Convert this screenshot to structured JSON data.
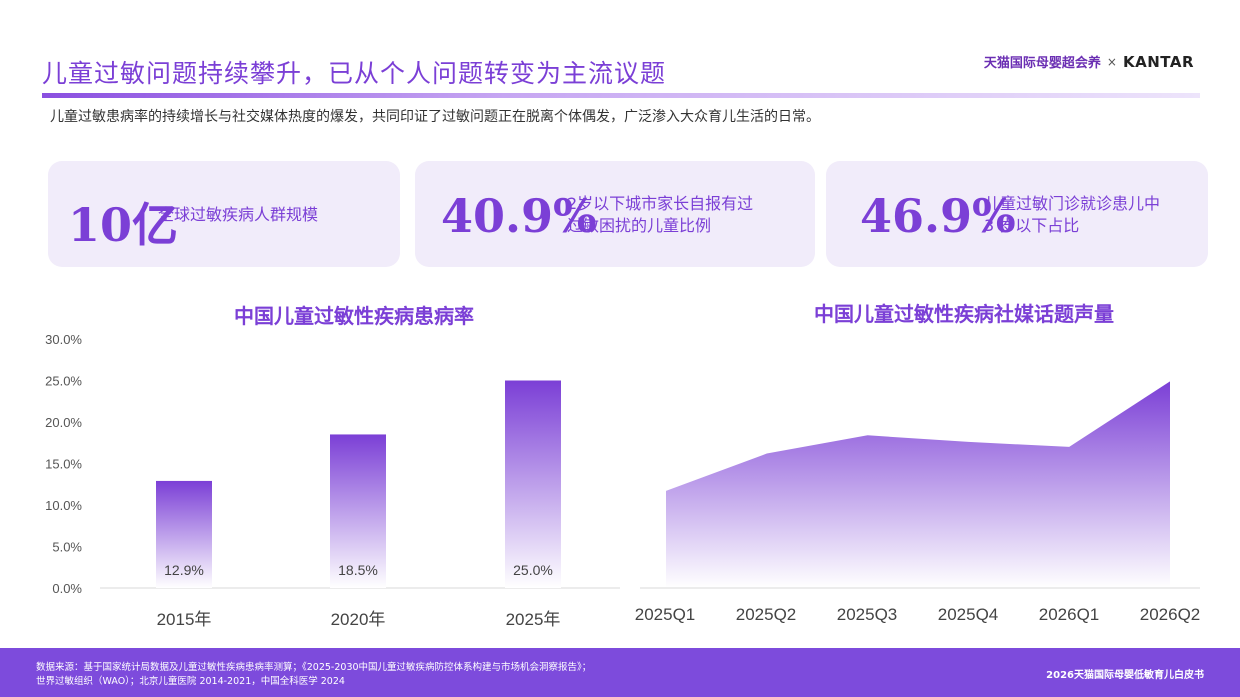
{
  "header": {
    "title": "儿童过敏问题持续攀升，已从个人问题转变为主流议题",
    "subtitle": "儿童过敏患病率的持续增长与社交媒体热度的爆发，共同印证了过敏问题正在脱离个体偶发，广泛渗入大众育儿生活的日常。",
    "brand_tmall": "天猫国际母婴超会养",
    "brand_x": "×",
    "brand_kantar": "KANTAR"
  },
  "stats": [
    {
      "value": "10亿",
      "desc1": "全球过敏疾病人群规模",
      "desc2": ""
    },
    {
      "value": "40.9%",
      "desc1": "2岁以下城市家长自报有过",
      "desc2": "过敏困扰的儿童比例"
    },
    {
      "value": "46.9%",
      "desc1": "儿童过敏门诊就诊患儿中",
      "desc2": "3 岁以下占比"
    }
  ],
  "colors": {
    "accent": "#7b3fd6",
    "card_bg": "#f1ecfa",
    "footer_bg": "#7d4bdc"
  },
  "chart_data": [
    {
      "type": "bar",
      "title": "中国儿童过敏性疾病患病率",
      "categories": [
        "2015年",
        "2020年",
        "2025年"
      ],
      "values": [
        12.9,
        18.5,
        25.0
      ],
      "value_labels": [
        "12.9%",
        "18.5%",
        "25.0%"
      ],
      "yticks": [
        "0.0%",
        "5.0%",
        "10.0%",
        "15.0%",
        "20.0%",
        "25.0%",
        "30.0%"
      ],
      "ylim": [
        0,
        30
      ],
      "grid": false
    },
    {
      "type": "area",
      "title": "中国儿童过敏性疾病社媒话题声量",
      "categories": [
        "2025Q1",
        "2025Q2",
        "2025Q3",
        "2025Q4",
        "2026Q1",
        "2026Q2"
      ],
      "values": [
        11.7,
        16.2,
        18.4,
        17.6,
        17.0,
        24.9
      ],
      "ylim": [
        0,
        30
      ],
      "grid": false
    }
  ],
  "footer": {
    "source_line1": "数据来源：基于国家统计局数据及儿童过敏性疾病患病率测算；《2025-2030中国儿童过敏疾病防控体系构建与市场机会洞察报告》；",
    "source_line2": "世界过敏组织（WAO）；北京儿童医院 2014-2021，中国全科医学 2024",
    "brand": "2026天猫国际母婴低敏育儿白皮书"
  }
}
